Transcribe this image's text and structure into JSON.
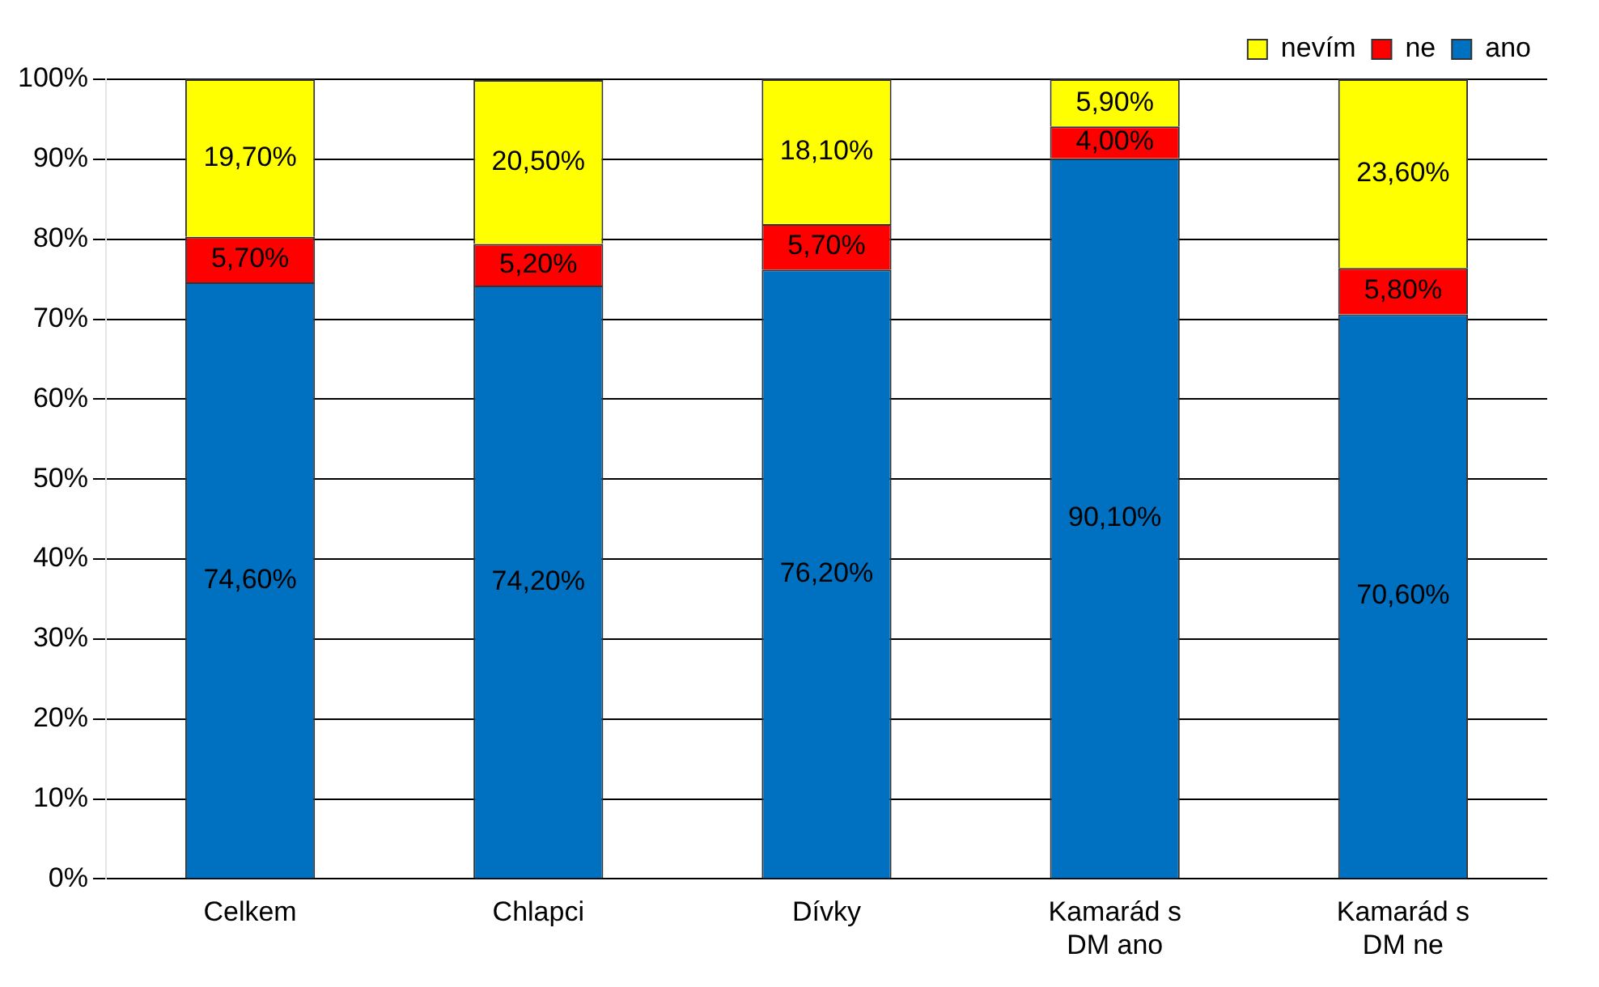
{
  "chart_data": {
    "type": "bar",
    "stacked": true,
    "categories": [
      "Celkem",
      "Chlapci",
      "Dívky",
      "Kamarád s DM ano",
      "Kamarád s DM ne"
    ],
    "series": [
      {
        "name": "ano",
        "color": "#0070c0",
        "values": [
          74.6,
          74.2,
          76.2,
          90.1,
          70.6
        ],
        "value_labels": [
          "74,60%",
          "74,20%",
          "76,20%",
          "90,10%",
          "70,60%"
        ]
      },
      {
        "name": "ne",
        "color": "#ff0000",
        "values": [
          5.7,
          5.2,
          5.7,
          4.0,
          5.8
        ],
        "value_labels": [
          "5,70%",
          "5,20%",
          "5,70%",
          "4,00%",
          "5,80%"
        ]
      },
      {
        "name": "nevím",
        "color": "#ffff00",
        "values": [
          19.7,
          20.5,
          18.1,
          5.9,
          23.6
        ],
        "value_labels": [
          "19,70%",
          "20,50%",
          "18,10%",
          "5,90%",
          "23,60%"
        ]
      }
    ],
    "ylim": [
      0,
      100
    ],
    "yticks": [
      {
        "value": 0,
        "label": "0%"
      },
      {
        "value": 10,
        "label": "10%"
      },
      {
        "value": 20,
        "label": "20%"
      },
      {
        "value": 30,
        "label": "30%"
      },
      {
        "value": 40,
        "label": "40%"
      },
      {
        "value": 50,
        "label": "50%"
      },
      {
        "value": 60,
        "label": "60%"
      },
      {
        "value": 70,
        "label": "70%"
      },
      {
        "value": 80,
        "label": "80%"
      },
      {
        "value": 90,
        "label": "90%"
      },
      {
        "value": 100,
        "label": "100%"
      }
    ],
    "grid": "y",
    "legend": "top right"
  }
}
